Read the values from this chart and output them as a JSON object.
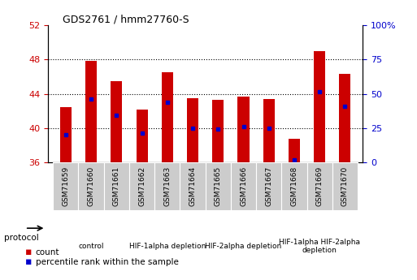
{
  "title": "GDS2761 / hmm27760-S",
  "samples": [
    "GSM71659",
    "GSM71660",
    "GSM71661",
    "GSM71662",
    "GSM71663",
    "GSM71664",
    "GSM71665",
    "GSM71666",
    "GSM71667",
    "GSM71668",
    "GSM71669",
    "GSM71670"
  ],
  "bar_top": [
    42.4,
    47.8,
    45.5,
    42.2,
    46.5,
    43.5,
    43.3,
    43.7,
    43.4,
    38.8,
    49.0,
    46.3
  ],
  "bar_bottom": 36.0,
  "blue_dot_y": [
    39.2,
    43.4,
    41.5,
    39.4,
    43.0,
    40.0,
    39.9,
    40.2,
    40.0,
    36.3,
    44.2,
    42.5
  ],
  "ylim": [
    36,
    52
  ],
  "yticks_left": [
    36,
    40,
    44,
    48,
    52
  ],
  "yticks_right_pct": [
    0,
    25,
    50,
    75,
    100
  ],
  "ylabel_left_color": "#cc0000",
  "ylabel_right_color": "#0000cc",
  "bar_color": "#cc0000",
  "dot_color": "#0000cc",
  "bar_width": 0.45,
  "proto_defs": [
    {
      "start": 0,
      "end": 2,
      "label": "control",
      "color": "#ccffcc"
    },
    {
      "start": 3,
      "end": 5,
      "label": "HIF-1alpha depletion",
      "color": "#aaffaa"
    },
    {
      "start": 6,
      "end": 8,
      "label": "HIF-2alpha depletion",
      "color": "#66ee66"
    },
    {
      "start": 9,
      "end": 11,
      "label": "HIF-1alpha HIF-2alpha\ndepletion",
      "color": "#22dd22"
    }
  ]
}
